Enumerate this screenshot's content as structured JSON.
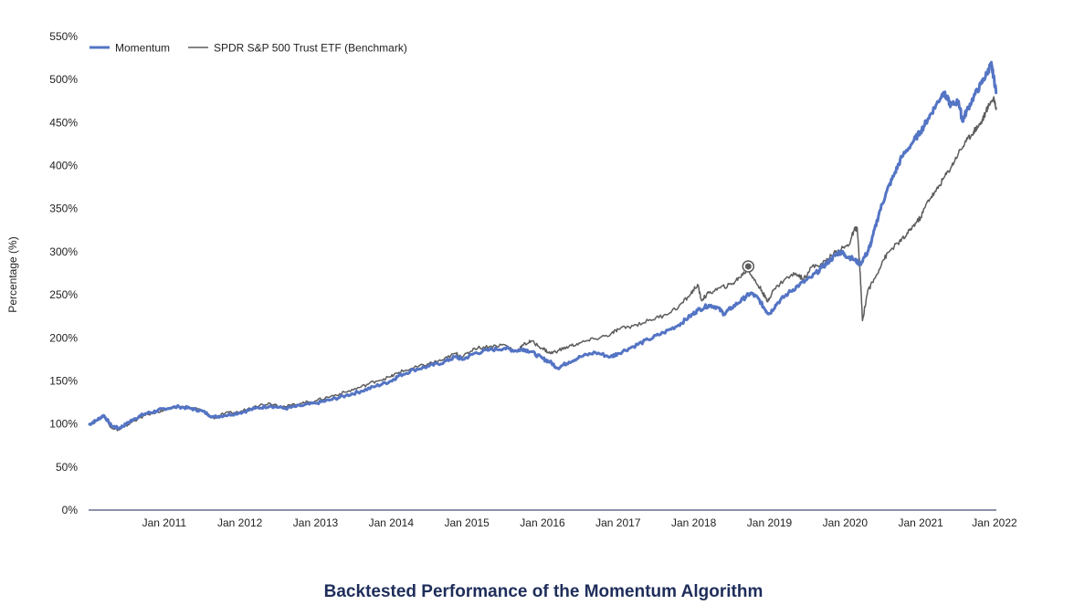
{
  "chart_data": {
    "type": "line",
    "title": "Backtested Performance of the Momentum Algorithm",
    "ylabel": "Percentage (%)",
    "xlabel": "",
    "ylim": [
      0,
      550
    ],
    "xlim": [
      2010.0,
      2022.0
    ],
    "y_ticks": [
      0,
      50,
      100,
      150,
      200,
      250,
      300,
      350,
      400,
      450,
      500,
      550
    ],
    "y_tick_labels": [
      "0%",
      "50%",
      "100%",
      "150%",
      "200%",
      "250%",
      "300%",
      "350%",
      "400%",
      "450%",
      "500%",
      "550%"
    ],
    "x_ticks": [
      2011,
      2012,
      2013,
      2014,
      2015,
      2016,
      2017,
      2018,
      2019,
      2020,
      2021,
      2022
    ],
    "x_tick_labels": [
      "Jan 2011",
      "Jan 2012",
      "Jan 2013",
      "Jan 2014",
      "Jan 2015",
      "Jan 2016",
      "Jan 2017",
      "Jan 2018",
      "Jan 2019",
      "Jan 2020",
      "Jan 2021",
      "Jan 2022"
    ],
    "legend_position": "top-left",
    "series": [
      {
        "name": "Momentum",
        "color": "#5474c4",
        "points": [
          [
            2010.0,
            99
          ],
          [
            2010.1,
            104
          ],
          [
            2010.2,
            110
          ],
          [
            2010.3,
            98
          ],
          [
            2010.4,
            95
          ],
          [
            2010.5,
            100
          ],
          [
            2010.6,
            106
          ],
          [
            2010.75,
            112
          ],
          [
            2010.9,
            115
          ],
          [
            2011.0,
            118
          ],
          [
            2011.2,
            120
          ],
          [
            2011.35,
            118
          ],
          [
            2011.5,
            115
          ],
          [
            2011.65,
            108
          ],
          [
            2011.8,
            110
          ],
          [
            2012.0,
            113
          ],
          [
            2012.2,
            118
          ],
          [
            2012.4,
            121
          ],
          [
            2012.6,
            118
          ],
          [
            2012.8,
            121
          ],
          [
            2013.0,
            124
          ],
          [
            2013.2,
            128
          ],
          [
            2013.4,
            133
          ],
          [
            2013.6,
            138
          ],
          [
            2013.8,
            144
          ],
          [
            2014.0,
            150
          ],
          [
            2014.1,
            156
          ],
          [
            2014.3,
            163
          ],
          [
            2014.5,
            167
          ],
          [
            2014.7,
            172
          ],
          [
            2014.85,
            178
          ],
          [
            2014.95,
            175
          ],
          [
            2015.1,
            182
          ],
          [
            2015.3,
            186
          ],
          [
            2015.5,
            188
          ],
          [
            2015.65,
            185
          ],
          [
            2015.75,
            187
          ],
          [
            2015.85,
            184
          ],
          [
            2016.0,
            176
          ],
          [
            2016.1,
            172
          ],
          [
            2016.2,
            165
          ],
          [
            2016.35,
            172
          ],
          [
            2016.5,
            178
          ],
          [
            2016.7,
            183
          ],
          [
            2016.9,
            178
          ],
          [
            2017.0,
            182
          ],
          [
            2017.2,
            190
          ],
          [
            2017.4,
            198
          ],
          [
            2017.6,
            206
          ],
          [
            2017.8,
            215
          ],
          [
            2017.95,
            225
          ],
          [
            2018.05,
            232
          ],
          [
            2018.2,
            238
          ],
          [
            2018.3,
            236
          ],
          [
            2018.4,
            228
          ],
          [
            2018.5,
            235
          ],
          [
            2018.65,
            245
          ],
          [
            2018.75,
            252
          ],
          [
            2018.85,
            246
          ],
          [
            2018.95,
            232
          ],
          [
            2019.0,
            228
          ],
          [
            2019.1,
            240
          ],
          [
            2019.25,
            252
          ],
          [
            2019.4,
            262
          ],
          [
            2019.55,
            270
          ],
          [
            2019.7,
            282
          ],
          [
            2019.8,
            290
          ],
          [
            2019.9,
            298
          ],
          [
            2019.95,
            300
          ],
          [
            2020.0,
            296
          ],
          [
            2020.1,
            292
          ],
          [
            2020.2,
            286
          ],
          [
            2020.3,
            300
          ],
          [
            2020.35,
            312
          ],
          [
            2020.45,
            345
          ],
          [
            2020.55,
            370
          ],
          [
            2020.65,
            390
          ],
          [
            2020.75,
            410
          ],
          [
            2020.9,
            428
          ],
          [
            2021.0,
            440
          ],
          [
            2021.1,
            455
          ],
          [
            2021.2,
            470
          ],
          [
            2021.3,
            485
          ],
          [
            2021.35,
            478
          ],
          [
            2021.4,
            470
          ],
          [
            2021.5,
            475
          ],
          [
            2021.55,
            452
          ],
          [
            2021.6,
            462
          ],
          [
            2021.7,
            480
          ],
          [
            2021.8,
            495
          ],
          [
            2021.88,
            508
          ],
          [
            2021.93,
            518
          ],
          [
            2021.96,
            505
          ],
          [
            2022.0,
            485
          ]
        ]
      },
      {
        "name": "SPDR S&P 500 Trust ETF (Benchmark)",
        "color": "#5c5c5c",
        "points": [
          [
            2010.0,
            100
          ],
          [
            2010.1,
            104
          ],
          [
            2010.2,
            110
          ],
          [
            2010.3,
            96
          ],
          [
            2010.4,
            93
          ],
          [
            2010.5,
            98
          ],
          [
            2010.6,
            104
          ],
          [
            2010.75,
            110
          ],
          [
            2010.9,
            114
          ],
          [
            2011.0,
            116
          ],
          [
            2011.2,
            120
          ],
          [
            2011.35,
            119
          ],
          [
            2011.5,
            116
          ],
          [
            2011.65,
            107
          ],
          [
            2011.8,
            112
          ],
          [
            2012.0,
            114
          ],
          [
            2012.2,
            121
          ],
          [
            2012.4,
            124
          ],
          [
            2012.6,
            120
          ],
          [
            2012.8,
            124
          ],
          [
            2013.0,
            127
          ],
          [
            2013.2,
            132
          ],
          [
            2013.4,
            137
          ],
          [
            2013.6,
            143
          ],
          [
            2013.8,
            150
          ],
          [
            2014.0,
            155
          ],
          [
            2014.1,
            160
          ],
          [
            2014.3,
            165
          ],
          [
            2014.5,
            170
          ],
          [
            2014.7,
            175
          ],
          [
            2014.85,
            182
          ],
          [
            2014.95,
            178
          ],
          [
            2015.1,
            188
          ],
          [
            2015.3,
            190
          ],
          [
            2015.5,
            192
          ],
          [
            2015.65,
            184
          ],
          [
            2015.75,
            192
          ],
          [
            2015.85,
            196
          ],
          [
            2016.0,
            188
          ],
          [
            2016.1,
            182
          ],
          [
            2016.2,
            185
          ],
          [
            2016.35,
            190
          ],
          [
            2016.5,
            194
          ],
          [
            2016.7,
            199
          ],
          [
            2016.9,
            204
          ],
          [
            2017.0,
            210
          ],
          [
            2017.2,
            214
          ],
          [
            2017.4,
            220
          ],
          [
            2017.6,
            226
          ],
          [
            2017.8,
            236
          ],
          [
            2017.95,
            250
          ],
          [
            2018.05,
            262
          ],
          [
            2018.1,
            244
          ],
          [
            2018.2,
            252
          ],
          [
            2018.35,
            258
          ],
          [
            2018.5,
            262
          ],
          [
            2018.6,
            270
          ],
          [
            2018.72,
            280
          ],
          [
            2018.8,
            267
          ],
          [
            2018.9,
            255
          ],
          [
            2018.97,
            242
          ],
          [
            2019.05,
            255
          ],
          [
            2019.2,
            268
          ],
          [
            2019.35,
            275
          ],
          [
            2019.45,
            268
          ],
          [
            2019.55,
            282
          ],
          [
            2019.7,
            286
          ],
          [
            2019.85,
            298
          ],
          [
            2019.95,
            303
          ],
          [
            2020.05,
            308
          ],
          [
            2020.12,
            325
          ],
          [
            2020.16,
            328
          ],
          [
            2020.2,
            275
          ],
          [
            2020.23,
            220
          ],
          [
            2020.3,
            255
          ],
          [
            2020.4,
            270
          ],
          [
            2020.5,
            290
          ],
          [
            2020.6,
            302
          ],
          [
            2020.7,
            310
          ],
          [
            2020.8,
            318
          ],
          [
            2020.9,
            330
          ],
          [
            2021.0,
            340
          ],
          [
            2021.1,
            360
          ],
          [
            2021.2,
            370
          ],
          [
            2021.3,
            385
          ],
          [
            2021.4,
            398
          ],
          [
            2021.5,
            415
          ],
          [
            2021.6,
            428
          ],
          [
            2021.7,
            440
          ],
          [
            2021.75,
            445
          ],
          [
            2021.8,
            450
          ],
          [
            2021.86,
            462
          ],
          [
            2021.92,
            474
          ],
          [
            2021.97,
            478
          ],
          [
            2022.0,
            465
          ]
        ]
      }
    ],
    "annotations": [
      {
        "type": "marker",
        "series": "SPDR S&P 500 Trust ETF (Benchmark)",
        "x": 2018.72,
        "y": 283
      }
    ]
  },
  "colors": {
    "title": "#1e2d5a",
    "axis": "#1a2650",
    "text": "#222222"
  }
}
